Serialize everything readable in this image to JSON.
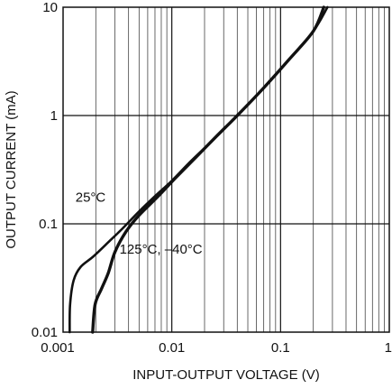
{
  "chart_data": {
    "type": "line",
    "xlabel": "INPUT-OUTPUT VOLTAGE (V)",
    "ylabel": "OUTPUT CURRENT (mA)",
    "x_scale": "log",
    "y_scale": "log",
    "xlim": [
      0.001,
      1
    ],
    "ylim": [
      0.01,
      10
    ],
    "grid": true,
    "x_ticks": [
      "0.001",
      "0.01",
      "0.1",
      "1"
    ],
    "y_ticks": [
      "0.01",
      "0.1",
      "1",
      "10"
    ],
    "series": [
      {
        "name": "25°C",
        "points": [
          [
            0.00115,
            0.01
          ],
          [
            0.00116,
            0.018
          ],
          [
            0.00125,
            0.03
          ],
          [
            0.00145,
            0.04
          ],
          [
            0.0019,
            0.05
          ],
          [
            0.0027,
            0.07
          ],
          [
            0.0035,
            0.09
          ],
          [
            0.005,
            0.13
          ],
          [
            0.007,
            0.18
          ],
          [
            0.01,
            0.25
          ],
          [
            0.015,
            0.38
          ],
          [
            0.025,
            0.62
          ],
          [
            0.04,
            1.0
          ],
          [
            0.07,
            1.8
          ],
          [
            0.12,
            3.3
          ],
          [
            0.2,
            6.0
          ],
          [
            0.27,
            10
          ]
        ]
      },
      {
        "name": "125°C, –40°C",
        "points": [
          [
            0.00187,
            0.01
          ],
          [
            0.00197,
            0.018
          ],
          [
            0.00225,
            0.025
          ],
          [
            0.0026,
            0.035
          ],
          [
            0.003,
            0.055
          ],
          [
            0.0038,
            0.085
          ],
          [
            0.005,
            0.12
          ],
          [
            0.0075,
            0.18
          ],
          [
            0.011,
            0.27
          ],
          [
            0.017,
            0.42
          ],
          [
            0.026,
            0.65
          ],
          [
            0.04,
            1.0
          ],
          [
            0.07,
            1.8
          ],
          [
            0.12,
            3.3
          ],
          [
            0.2,
            6.0
          ],
          [
            0.25,
            10
          ]
        ]
      }
    ],
    "annotations": [
      "25°C",
      "125°C, –40°C"
    ]
  }
}
